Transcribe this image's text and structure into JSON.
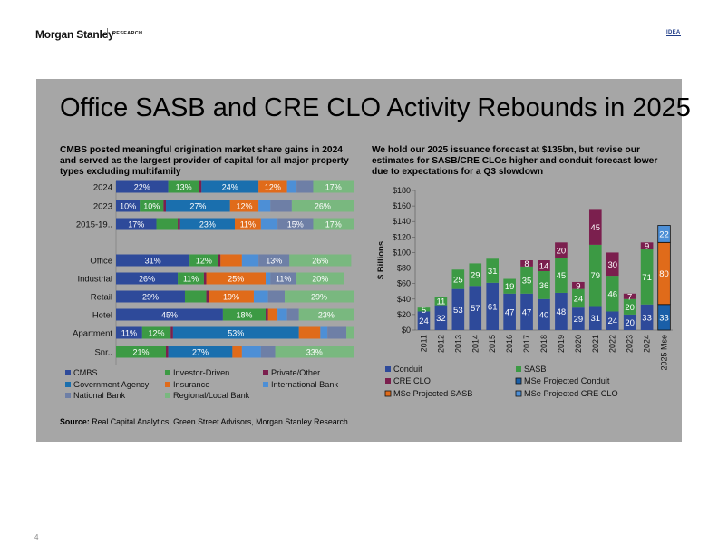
{
  "header": {
    "logo": "Morgan Stanley",
    "section": "RESEARCH",
    "tag": "IDEA"
  },
  "page": {
    "title": "Office SASB and CRE CLO Activity Rebounds in 2025",
    "number": "4"
  },
  "left": {
    "subtitle": "CMBS posted meaningful origination market share gains in 2024 and served as the largest provider of capital for all major property types excluding multifamily"
  },
  "right": {
    "subtitle": "We hold our 2025 issuance forecast at $135bn, but revise our estimates for SASB/CRE CLOs higher and conduit forecast lower due to expectations for a Q3 slowdown"
  },
  "source": {
    "label": "Source:",
    "text": " Real Capital Analytics, Green Street Advisors, Morgan Stanley Research"
  },
  "chart_data": [
    {
      "type": "bar",
      "orientation": "horizontal",
      "stacked": true,
      "percent": true,
      "categories": [
        "2024",
        "2023",
        "2015-19..",
        "Office",
        "Industrial",
        "Retail",
        "Hotel",
        "Apartment",
        "Snr.."
      ],
      "gap_after_index": 2,
      "xlim": [
        0,
        100
      ],
      "legend_position": "bottom",
      "series": [
        {
          "name": "CMBS",
          "color": "#2e4a9a",
          "values": [
            22,
            10,
            17,
            31,
            26,
            29,
            45,
            11,
            0
          ],
          "labels": [
            "22%",
            "10%",
            "17%",
            "31%",
            "26%",
            "29%",
            "45%",
            "11%",
            ""
          ]
        },
        {
          "name": "Investor-Driven",
          "color": "#3c9a44",
          "values": [
            13,
            10,
            9,
            12,
            11,
            9,
            18,
            12,
            21
          ],
          "labels": [
            "13%",
            "10%",
            "",
            "12%",
            "11%",
            "",
            "18%",
            "12%",
            "21%"
          ]
        },
        {
          "name": "Private/Other",
          "color": "#7b1f4e",
          "values": [
            1,
            1,
            1,
            1,
            1,
            1,
            1,
            1,
            1
          ],
          "labels": [
            "",
            "",
            "",
            "",
            "",
            "",
            "",
            "",
            ""
          ]
        },
        {
          "name": "Government Agency",
          "color": "#1a6fae",
          "values": [
            24,
            27,
            23,
            0,
            0,
            0,
            0,
            53,
            27
          ],
          "labels": [
            "24%",
            "27%",
            "23%",
            "",
            "",
            "",
            "",
            "53%",
            "27%"
          ]
        },
        {
          "name": "Insurance",
          "color": "#e06b1a",
          "values": [
            12,
            12,
            11,
            9,
            25,
            19,
            4,
            9,
            4
          ],
          "labels": [
            "12%",
            "12%",
            "11%",
            "",
            "25%",
            "19%",
            "",
            "",
            ""
          ]
        },
        {
          "name": "International Bank",
          "color": "#4d8fd6",
          "values": [
            4,
            5,
            7,
            7,
            2,
            6,
            4,
            3,
            8
          ],
          "labels": [
            "",
            "",
            "",
            "",
            "",
            "",
            "",
            "",
            ""
          ]
        },
        {
          "name": "National Bank",
          "color": "#6e7fa6",
          "values": [
            7,
            9,
            15,
            13,
            11,
            7,
            5,
            8,
            6
          ],
          "labels": [
            "",
            "",
            "15%",
            "13%",
            "11%",
            "",
            "",
            "",
            ""
          ]
        },
        {
          "name": "Regional/Local Bank",
          "color": "#79b87f",
          "values": [
            17,
            26,
            17,
            26,
            20,
            29,
            23,
            3,
            33
          ],
          "labels": [
            "17%",
            "26%",
            "17%",
            "26%",
            "20%",
            "29%",
            "23%",
            "",
            "33%"
          ]
        }
      ]
    },
    {
      "type": "bar",
      "stacked": true,
      "categories": [
        "2011",
        "2012",
        "2013",
        "2014",
        "2015",
        "2016",
        "2017",
        "2018",
        "2019",
        "2020",
        "2021",
        "2022",
        "2023",
        "2024",
        "2025 Mse"
      ],
      "ylabel": "$ Billions",
      "ylim": [
        0,
        180
      ],
      "yticks": [
        "$0",
        "$20",
        "$40",
        "$60",
        "$80",
        "$100",
        "$120",
        "$140",
        "$160",
        "$180"
      ],
      "legend_position": "bottom",
      "series": [
        {
          "name": "Conduit",
          "color": "#2e4a9a",
          "values": [
            24,
            32,
            53,
            57,
            61,
            47,
            47,
            40,
            48,
            29,
            31,
            24,
            20,
            33,
            0
          ]
        },
        {
          "name": "SASB",
          "color": "#3c9a44",
          "values": [
            5,
            11,
            25,
            29,
            31,
            19,
            35,
            36,
            45,
            24,
            79,
            46,
            20,
            71,
            0
          ]
        },
        {
          "name": "CRE CLO",
          "color": "#7b1f4e",
          "values": [
            0,
            0,
            0,
            0,
            0,
            0,
            8,
            14,
            20,
            9,
            45,
            30,
            7,
            9,
            0
          ]
        },
        {
          "name": "MSe Projected Conduit",
          "color": "#1a5fa8",
          "values": [
            0,
            0,
            0,
            0,
            0,
            0,
            0,
            0,
            0,
            0,
            0,
            0,
            0,
            0,
            33
          ]
        },
        {
          "name": "MSe Projected SASB",
          "color": "#e06b1a",
          "values": [
            0,
            0,
            0,
            0,
            0,
            0,
            0,
            0,
            0,
            0,
            0,
            0,
            0,
            0,
            80
          ]
        },
        {
          "name": "MSe Projected CRE CLO",
          "color": "#4d8fd6",
          "values": [
            0,
            0,
            0,
            0,
            0,
            0,
            0,
            0,
            0,
            0,
            0,
            0,
            0,
            0,
            22
          ]
        }
      ]
    }
  ]
}
